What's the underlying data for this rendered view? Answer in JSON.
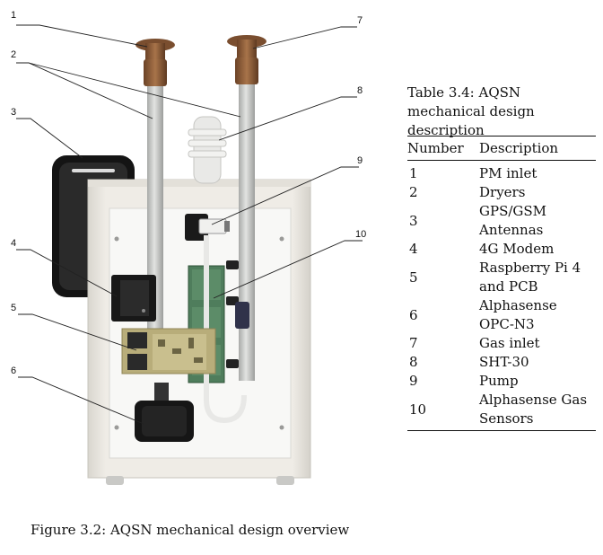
{
  "figure": {
    "caption": "Figure 3.2: AQSN mechanical design overview",
    "callout_numbers": [
      "1",
      "2",
      "3",
      "4",
      "5",
      "6",
      "7",
      "8",
      "9",
      "10"
    ]
  },
  "table": {
    "caption": "Table 3.4: AQSN mechanical design description",
    "headers": [
      "Number",
      "Description"
    ],
    "rows": [
      {
        "number": "1",
        "description": "PM inlet"
      },
      {
        "number": "2",
        "description": "Dryers"
      },
      {
        "number": "3",
        "description": "GPS/GSM Antennas"
      },
      {
        "number": "4",
        "description": "4G Modem"
      },
      {
        "number": "5",
        "description": "Raspberry Pi 4 and PCB"
      },
      {
        "number": "6",
        "description": "Alphasense OPC-N3"
      },
      {
        "number": "7",
        "description": "Gas inlet"
      },
      {
        "number": "8",
        "description": "SHT-30"
      },
      {
        "number": "9",
        "description": "Pump"
      },
      {
        "number": "10",
        "description": "Alphasense Gas Sensors"
      }
    ]
  },
  "colors": {
    "enclosure": "#ece9e2",
    "back_plate": "#f7f7f4",
    "inlet_bronze": "#8a5a36",
    "antenna_black": "#1b1b1b",
    "sensor_board_green": "#4f7d5c",
    "pcb_gold": "#b8ad7a"
  }
}
